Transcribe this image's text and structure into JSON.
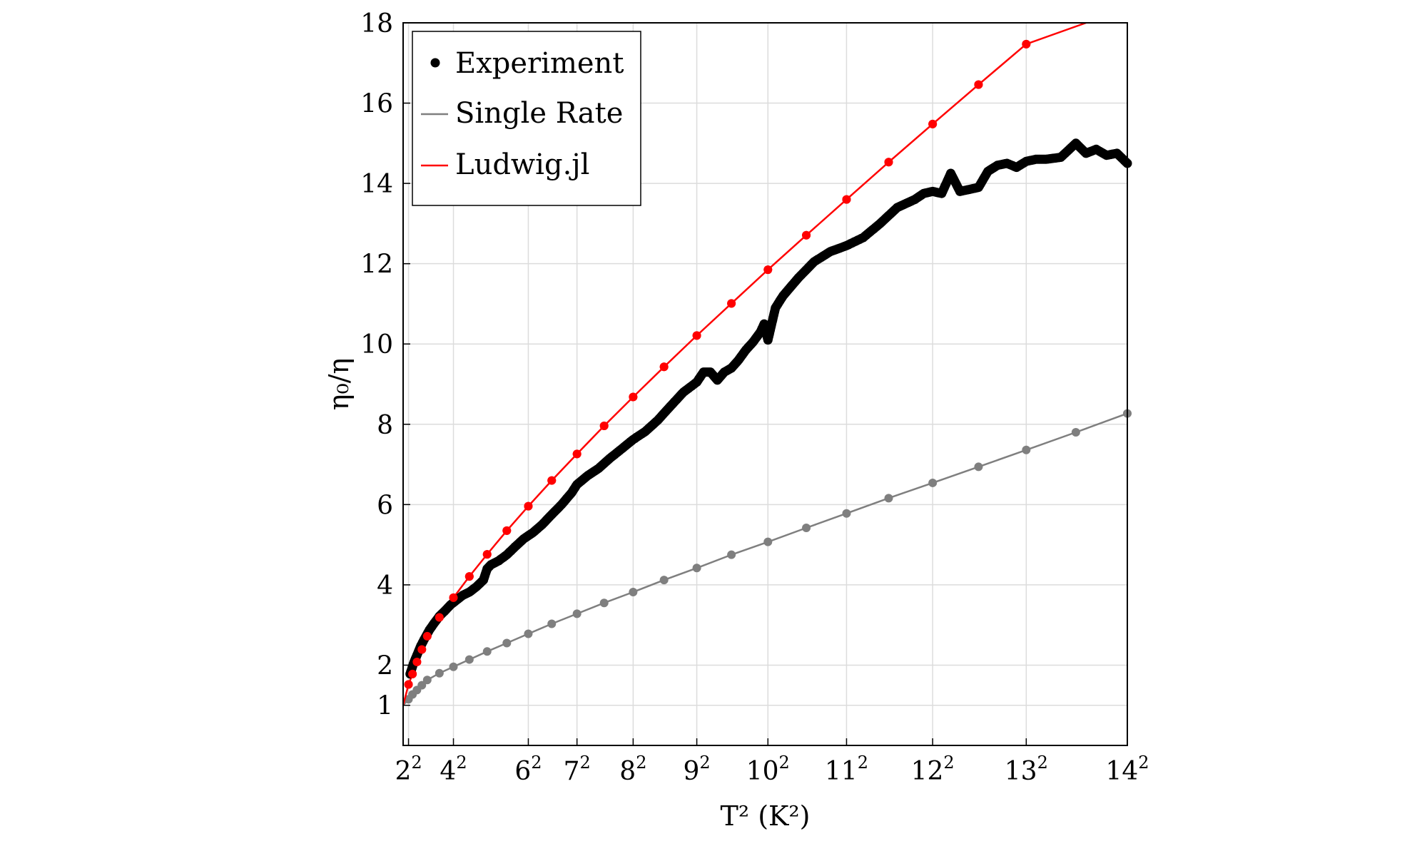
{
  "chart_data": {
    "type": "line",
    "xlabel": "T² (K²)",
    "ylabel": "η₀/η",
    "x_scale": "T squared",
    "xlim": [
      1.6,
      14
    ],
    "ylim": [
      0,
      18
    ],
    "x_ticks": [
      {
        "T": 2,
        "base": "2",
        "exp": "2"
      },
      {
        "T": 4,
        "base": "4",
        "exp": "2"
      },
      {
        "T": 6,
        "base": "6",
        "exp": "2"
      },
      {
        "T": 7,
        "base": "7",
        "exp": "2"
      },
      {
        "T": 8,
        "base": "8",
        "exp": "2"
      },
      {
        "T": 9,
        "base": "9",
        "exp": "2"
      },
      {
        "T": 10,
        "base": "10",
        "exp": "2"
      },
      {
        "T": 11,
        "base": "11",
        "exp": "2"
      },
      {
        "T": 12,
        "base": "12",
        "exp": "2"
      },
      {
        "T": 13,
        "base": "13",
        "exp": "2"
      },
      {
        "T": 14,
        "base": "14",
        "exp": "2"
      }
    ],
    "y_ticks": [
      1,
      2,
      4,
      6,
      8,
      10,
      12,
      14,
      16,
      18
    ],
    "grid": true,
    "legend_position": "top-left",
    "series": [
      {
        "name": "Experiment",
        "style": "dots",
        "color": "#000000",
        "points": [
          [
            2.1,
            1.78
          ],
          [
            2.3,
            2.03
          ],
          [
            2.5,
            2.25
          ],
          [
            2.7,
            2.48
          ],
          [
            2.9,
            2.68
          ],
          [
            3.1,
            2.88
          ],
          [
            3.3,
            3.05
          ],
          [
            3.5,
            3.22
          ],
          [
            3.7,
            3.35
          ],
          [
            3.9,
            3.5
          ],
          [
            4.1,
            3.62
          ],
          [
            4.3,
            3.74
          ],
          [
            4.5,
            3.82
          ],
          [
            4.7,
            3.95
          ],
          [
            4.9,
            4.12
          ],
          [
            5.0,
            4.4
          ],
          [
            5.1,
            4.5
          ],
          [
            5.3,
            4.6
          ],
          [
            5.5,
            4.75
          ],
          [
            5.7,
            4.95
          ],
          [
            5.9,
            5.15
          ],
          [
            6.1,
            5.3
          ],
          [
            6.3,
            5.5
          ],
          [
            6.5,
            5.75
          ],
          [
            6.7,
            6.0
          ],
          [
            6.9,
            6.3
          ],
          [
            7.0,
            6.5
          ],
          [
            7.2,
            6.72
          ],
          [
            7.4,
            6.9
          ],
          [
            7.6,
            7.15
          ],
          [
            7.8,
            7.38
          ],
          [
            8.0,
            7.62
          ],
          [
            8.2,
            7.82
          ],
          [
            8.4,
            8.1
          ],
          [
            8.6,
            8.45
          ],
          [
            8.8,
            8.8
          ],
          [
            9.0,
            9.05
          ],
          [
            9.1,
            9.3
          ],
          [
            9.2,
            9.3
          ],
          [
            9.3,
            9.1
          ],
          [
            9.4,
            9.3
          ],
          [
            9.5,
            9.4
          ],
          [
            9.6,
            9.6
          ],
          [
            9.7,
            9.85
          ],
          [
            9.8,
            10.05
          ],
          [
            9.9,
            10.3
          ],
          [
            9.95,
            10.5
          ],
          [
            10.0,
            10.1
          ],
          [
            10.05,
            10.5
          ],
          [
            10.1,
            10.9
          ],
          [
            10.2,
            11.2
          ],
          [
            10.4,
            11.65
          ],
          [
            10.6,
            12.05
          ],
          [
            10.8,
            12.3
          ],
          [
            11.0,
            12.45
          ],
          [
            11.2,
            12.65
          ],
          [
            11.4,
            13.0
          ],
          [
            11.6,
            13.4
          ],
          [
            11.7,
            13.5
          ],
          [
            11.8,
            13.6
          ],
          [
            11.9,
            13.75
          ],
          [
            12.0,
            13.8
          ],
          [
            12.1,
            13.75
          ],
          [
            12.2,
            14.25
          ],
          [
            12.3,
            13.8
          ],
          [
            12.4,
            13.85
          ],
          [
            12.5,
            13.9
          ],
          [
            12.6,
            14.3
          ],
          [
            12.7,
            14.45
          ],
          [
            12.8,
            14.5
          ],
          [
            12.9,
            14.4
          ],
          [
            13.0,
            14.55
          ],
          [
            13.1,
            14.6
          ],
          [
            13.2,
            14.6
          ],
          [
            13.35,
            14.65
          ],
          [
            13.5,
            15.0
          ],
          [
            13.6,
            14.75
          ],
          [
            13.7,
            14.85
          ],
          [
            13.8,
            14.7
          ],
          [
            13.9,
            14.75
          ],
          [
            14.0,
            14.5
          ]
        ]
      },
      {
        "name": "Single Rate",
        "style": "line+markers",
        "color": "#7f7f7f",
        "points": [
          [
            2.0,
            1.15
          ],
          [
            2.25,
            1.27
          ],
          [
            2.5,
            1.38
          ],
          [
            2.75,
            1.5
          ],
          [
            3.0,
            1.63
          ],
          [
            3.5,
            1.8
          ],
          [
            4.0,
            1.96
          ],
          [
            4.5,
            2.14
          ],
          [
            5.0,
            2.34
          ],
          [
            5.5,
            2.55
          ],
          [
            6.0,
            2.78
          ],
          [
            6.5,
            3.03
          ],
          [
            7.0,
            3.28
          ],
          [
            7.5,
            3.55
          ],
          [
            8.0,
            3.82
          ],
          [
            8.5,
            4.12
          ],
          [
            9.0,
            4.42
          ],
          [
            9.5,
            4.75
          ],
          [
            10.0,
            5.07
          ],
          [
            10.5,
            5.42
          ],
          [
            11.0,
            5.78
          ],
          [
            11.5,
            6.16
          ],
          [
            12.0,
            6.54
          ],
          [
            12.5,
            6.94
          ],
          [
            13.0,
            7.36
          ],
          [
            13.5,
            7.8
          ],
          [
            14.0,
            8.27
          ]
        ]
      },
      {
        "name": "Ludwig.jl",
        "style": "line+markers",
        "color": "#ff0000",
        "line_end": [
          13.6,
          18.0
        ],
        "points": [
          [
            2.0,
            1.52
          ],
          [
            2.25,
            1.78
          ],
          [
            2.5,
            2.08
          ],
          [
            2.75,
            2.39
          ],
          [
            3.0,
            2.72
          ],
          [
            3.5,
            3.19
          ],
          [
            4.0,
            3.68
          ],
          [
            4.5,
            4.21
          ],
          [
            5.0,
            4.76
          ],
          [
            5.5,
            5.35
          ],
          [
            6.0,
            5.96
          ],
          [
            6.5,
            6.6
          ],
          [
            7.0,
            7.26
          ],
          [
            7.5,
            7.96
          ],
          [
            8.0,
            8.68
          ],
          [
            8.5,
            9.43
          ],
          [
            9.0,
            10.21
          ],
          [
            9.5,
            11.01
          ],
          [
            10.0,
            11.85
          ],
          [
            10.5,
            12.71
          ],
          [
            11.0,
            13.6
          ],
          [
            11.5,
            14.53
          ],
          [
            12.0,
            15.48
          ],
          [
            12.5,
            16.46
          ],
          [
            13.0,
            17.47
          ]
        ]
      }
    ]
  }
}
